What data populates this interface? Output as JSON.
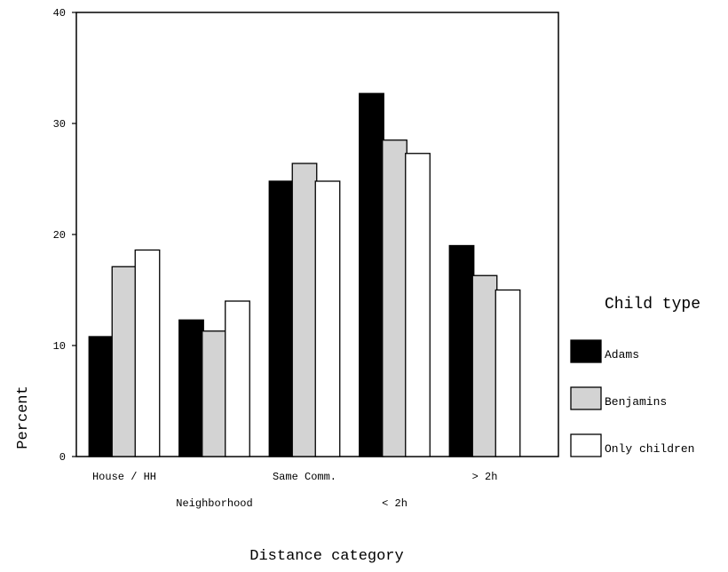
{
  "chart_data": {
    "type": "bar",
    "title": "",
    "xlabel": "Distance category",
    "ylabel": "Percent",
    "ylim": [
      0,
      40
    ],
    "yticks": [
      0,
      10,
      20,
      30,
      40
    ],
    "categories": [
      "House / HH",
      "Neighborhood",
      "Same Comm.",
      "< 2h",
      "> 2h"
    ],
    "series": [
      {
        "name": "Adams",
        "color": "#000000",
        "values": [
          10.8,
          12.3,
          24.8,
          32.7,
          19.0
        ]
      },
      {
        "name": "Benjamins",
        "color": "#d3d3d3",
        "values": [
          17.1,
          11.3,
          26.4,
          28.5,
          16.3
        ]
      },
      {
        "name": "Only children",
        "color": "#ffffff",
        "values": [
          18.6,
          14.0,
          24.8,
          27.3,
          15.0
        ]
      }
    ],
    "legend": {
      "title": "Child type",
      "position": "right"
    },
    "grid": false
  }
}
